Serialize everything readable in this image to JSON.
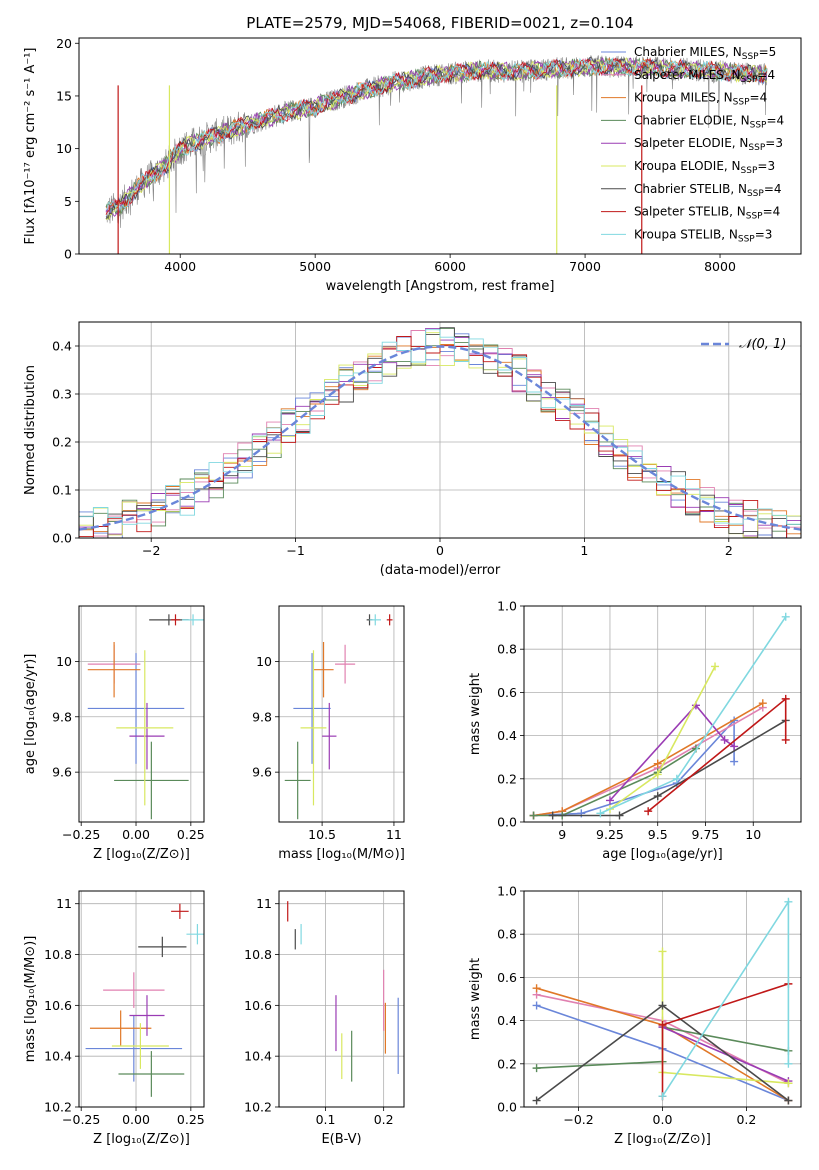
{
  "figure_title": "PLATE=2579, MJD=54068, FIBERID=0021, z=0.104",
  "colors": {
    "Chabrier MILES": "#6a86d9",
    "Salpeter MILES": "#e080b0",
    "Kroupa MILES": "#e07828",
    "Chabrier ELODIE": "#5a8a5a",
    "Salpeter ELODIE": "#9a3cb4",
    "Kroupa ELODIE": "#d8e860",
    "Chabrier STELIB": "#4a4a4a",
    "Salpeter STELIB": "#c01818",
    "Kroupa STELIB": "#80d8e0",
    "gaussian": "#6a86d9",
    "grid": "#b0b0b0"
  },
  "chart_data": [
    {
      "id": "spectrum",
      "type": "line",
      "title": "PLATE=2579, MJD=54068, FIBERID=0021, z=0.104",
      "xlabel": "wavelength [Angstrom, rest frame]",
      "ylabel": "Flux [fλ10⁻¹⁷ erg cm⁻² s⁻¹ A⁻¹]",
      "xlim": [
        3250,
        8600
      ],
      "ylim": [
        0,
        20.5
      ],
      "xticks": [
        4000,
        5000,
        6000,
        7000,
        8000
      ],
      "yticks": [
        0,
        5,
        10,
        15,
        20
      ],
      "grid": false,
      "legend_position": "top-right",
      "legend": [
        {
          "label": "Chabrier MILES, N",
          "sub": "SSP",
          "suffix": "=5"
        },
        {
          "label": "Salpeter MILES, N",
          "sub": "SSP",
          "suffix": "=4"
        },
        {
          "label": "Kroupa MILES, N",
          "sub": "SSP",
          "suffix": "=4"
        },
        {
          "label": "Chabrier ELODIE, N",
          "sub": "SSP",
          "suffix": "=4"
        },
        {
          "label": "Salpeter ELODIE, N",
          "sub": "SSP",
          "suffix": "=3"
        },
        {
          "label": "Kroupa ELODIE, N",
          "sub": "SSP",
          "suffix": "=3"
        },
        {
          "label": "Chabrier STELIB, N",
          "sub": "SSP",
          "suffix": "=4"
        },
        {
          "label": "Salpeter STELIB, N",
          "sub": "SSP",
          "suffix": "=4"
        },
        {
          "label": "Kroupa STELIB, N",
          "sub": "SSP",
          "suffix": "=3"
        }
      ],
      "data_range": [
        3450,
        8350
      ],
      "continuum": {
        "x": [
          3450,
          3550,
          3700,
          3900,
          4000,
          4200,
          4500,
          4800,
          5000,
          5300,
          5600,
          5900,
          6200,
          6500,
          6800,
          7100,
          7400,
          7800,
          8100,
          8350
        ],
        "y": [
          4.0,
          4.5,
          6.5,
          8.5,
          10.0,
          11.0,
          12.3,
          13.5,
          14.0,
          15.3,
          16.3,
          17.0,
          17.4,
          17.3,
          17.6,
          17.8,
          17.7,
          17.5,
          17.2,
          17.0
        ]
      }
    },
    {
      "id": "residuals",
      "type": "line",
      "xlabel": "(data-model)/error",
      "ylabel": "Normed distribution",
      "xlim": [
        -2.5,
        2.5
      ],
      "ylim": [
        0,
        0.45
      ],
      "xticks": [
        -2,
        -1,
        0,
        1,
        2
      ],
      "yticks": [
        0.0,
        0.1,
        0.2,
        0.3,
        0.4
      ],
      "grid": true,
      "legend_position": "top-right",
      "legend": [
        {
          "label": "𝒩(0, 1)",
          "style": "dashed"
        }
      ]
    },
    {
      "id": "age_vs_Z",
      "type": "scatter",
      "xlabel": "Z [log₁₀(Z/Z⊙)]",
      "ylabel": "age [log₁₀(age/yr)]",
      "xlim": [
        -0.26,
        0.31
      ],
      "ylim": [
        9.42,
        10.2
      ],
      "xticks": [
        -0.25,
        0.0,
        0.25
      ],
      "xticklabels": [
        "−0.25",
        "0.00",
        "0.25"
      ],
      "yticks": [
        9.6,
        9.8,
        10.0
      ],
      "grid": true,
      "points": [
        {
          "model": "Chabrier MILES",
          "x": 0.0,
          "y": 9.83,
          "xerr": 0.22,
          "yerr": 0.2
        },
        {
          "model": "Salpeter MILES",
          "x": -0.1,
          "y": 9.99,
          "xerr": 0.12,
          "yerr": 0.07
        },
        {
          "model": "Kroupa MILES",
          "x": -0.1,
          "y": 9.97,
          "xerr": 0.12,
          "yerr": 0.1
        },
        {
          "model": "Chabrier ELODIE",
          "x": 0.07,
          "y": 9.57,
          "xerr": 0.17,
          "yerr": 0.14
        },
        {
          "model": "Salpeter ELODIE",
          "x": 0.05,
          "y": 9.73,
          "xerr": 0.08,
          "yerr": 0.12
        },
        {
          "model": "Kroupa ELODIE",
          "x": 0.04,
          "y": 9.76,
          "xerr": 0.13,
          "yerr": 0.28
        },
        {
          "model": "Chabrier STELIB",
          "x": 0.15,
          "y": 10.15,
          "xerr": 0.09,
          "yerr": 0.02
        },
        {
          "model": "Salpeter STELIB",
          "x": 0.18,
          "y": 10.15,
          "xerr": 0.02,
          "yerr": 0.02
        },
        {
          "model": "Kroupa STELIB",
          "x": 0.26,
          "y": 10.15,
          "xerr": 0.05,
          "yerr": 0.02
        }
      ]
    },
    {
      "id": "age_vs_mass",
      "type": "scatter",
      "xlabel": "mass [log₁₀(M/M⊙)]",
      "xlim": [
        10.2,
        11.07
      ],
      "ylim": [
        9.42,
        10.2
      ],
      "xticks": [
        10.5,
        11.0
      ],
      "yticks": [
        9.6,
        9.8,
        10.0
      ],
      "grid": true,
      "points": [
        {
          "model": "Chabrier MILES",
          "x": 10.43,
          "y": 9.83,
          "xerr": 0.13,
          "yerr": 0.2
        },
        {
          "model": "Salpeter MILES",
          "x": 10.66,
          "y": 9.99,
          "xerr": 0.07,
          "yerr": 0.07
        },
        {
          "model": "Kroupa MILES",
          "x": 10.51,
          "y": 9.97,
          "xerr": 0.07,
          "yerr": 0.1
        },
        {
          "model": "Chabrier ELODIE",
          "x": 10.33,
          "y": 9.57,
          "xerr": 0.09,
          "yerr": 0.14
        },
        {
          "model": "Salpeter ELODIE",
          "x": 10.55,
          "y": 9.73,
          "xerr": 0.05,
          "yerr": 0.12
        },
        {
          "model": "Kroupa ELODIE",
          "x": 10.44,
          "y": 9.76,
          "xerr": 0.09,
          "yerr": 0.28
        },
        {
          "model": "Chabrier STELIB",
          "x": 10.83,
          "y": 10.15,
          "xerr": 0.02,
          "yerr": 0.02
        },
        {
          "model": "Salpeter STELIB",
          "x": 10.97,
          "y": 10.15,
          "xerr": 0.02,
          "yerr": 0.02
        },
        {
          "model": "Kroupa STELIB",
          "x": 10.87,
          "y": 10.15,
          "xerr": 0.04,
          "yerr": 0.02
        }
      ]
    },
    {
      "id": "weight_vs_age",
      "type": "line",
      "xlabel": "age [log₁₀(age/yr)]",
      "ylabel": "mass weight",
      "xlim": [
        8.8,
        10.25
      ],
      "ylim": [
        0,
        1.0
      ],
      "xticks": [
        9.0,
        9.25,
        9.5,
        9.75,
        10.0
      ],
      "yticks": [
        0.0,
        0.2,
        0.4,
        0.6,
        0.8,
        1.0
      ],
      "grid": true,
      "series": [
        {
          "model": "Chabrier MILES",
          "x": [
            8.85,
            9.1,
            9.6,
            9.9,
            9.9
          ],
          "y": [
            0.03,
            0.04,
            0.18,
            0.47,
            0.28
          ]
        },
        {
          "model": "Salpeter MILES",
          "x": [
            8.85,
            9.0,
            9.5,
            10.05
          ],
          "y": [
            0.03,
            0.05,
            0.25,
            0.53
          ]
        },
        {
          "model": "Kroupa MILES",
          "x": [
            8.85,
            9.0,
            9.5,
            10.05
          ],
          "y": [
            0.03,
            0.05,
            0.27,
            0.55
          ]
        },
        {
          "model": "Chabrier ELODIE",
          "x": [
            8.85,
            9.0,
            9.5,
            9.7
          ],
          "y": [
            0.03,
            0.03,
            0.23,
            0.34
          ]
        },
        {
          "model": "Salpeter ELODIE",
          "x": [
            9.25,
            9.7,
            9.85,
            9.9
          ],
          "y": [
            0.1,
            0.54,
            0.38,
            0.35
          ]
        },
        {
          "model": "Kroupa ELODIE",
          "x": [
            9.25,
            9.5,
            9.8
          ],
          "y": [
            0.06,
            0.22,
            0.72
          ]
        },
        {
          "model": "Chabrier STELIB",
          "x": [
            8.95,
            9.3,
            9.5,
            10.17
          ],
          "y": [
            0.03,
            0.03,
            0.12,
            0.47
          ]
        },
        {
          "model": "Salpeter STELIB",
          "x": [
            9.45,
            10.17,
            10.17
          ],
          "y": [
            0.05,
            0.57,
            0.38
          ]
        },
        {
          "model": "Kroupa STELIB",
          "x": [
            9.2,
            9.6,
            10.17
          ],
          "y": [
            0.04,
            0.2,
            0.95
          ]
        }
      ]
    },
    {
      "id": "mass_vs_Z",
      "type": "scatter",
      "xlabel": "Z [log₁₀(Z/Z⊙)]",
      "ylabel": "mass [log₁₀(M/M⊙)]",
      "xlim": [
        -0.26,
        0.31
      ],
      "ylim": [
        10.2,
        11.05
      ],
      "xticks": [
        -0.25,
        0.0,
        0.25
      ],
      "xticklabels": [
        "−0.25",
        "0.00",
        "0.25"
      ],
      "yticks": [
        10.2,
        10.4,
        10.6,
        10.8,
        11.0
      ],
      "grid": true,
      "points": [
        {
          "model": "Chabrier MILES",
          "x": -0.01,
          "y": 10.43,
          "xerr": 0.22,
          "yerr": 0.13
        },
        {
          "model": "Salpeter MILES",
          "x": -0.01,
          "y": 10.66,
          "xerr": 0.14,
          "yerr": 0.07
        },
        {
          "model": "Kroupa MILES",
          "x": -0.07,
          "y": 10.51,
          "xerr": 0.14,
          "yerr": 0.07
        },
        {
          "model": "Chabrier ELODIE",
          "x": 0.07,
          "y": 10.33,
          "xerr": 0.15,
          "yerr": 0.09
        },
        {
          "model": "Salpeter ELODIE",
          "x": 0.05,
          "y": 10.56,
          "xerr": 0.08,
          "yerr": 0.08
        },
        {
          "model": "Kroupa ELODIE",
          "x": 0.02,
          "y": 10.44,
          "xerr": 0.13,
          "yerr": 0.09
        },
        {
          "model": "Chabrier STELIB",
          "x": 0.12,
          "y": 10.83,
          "xerr": 0.11,
          "yerr": 0.04
        },
        {
          "model": "Salpeter STELIB",
          "x": 0.2,
          "y": 10.97,
          "xerr": 0.04,
          "yerr": 0.03
        },
        {
          "model": "Kroupa STELIB",
          "x": 0.28,
          "y": 10.88,
          "xerr": 0.05,
          "yerr": 0.04
        }
      ]
    },
    {
      "id": "mass_vs_ebv",
      "type": "scatter",
      "xlabel": "E(B-V)",
      "xlim": [
        0.02,
        0.235
      ],
      "ylim": [
        10.2,
        11.05
      ],
      "xticks": [
        0.1,
        0.2
      ],
      "yticks": [
        10.2,
        10.4,
        10.6,
        10.8,
        11.0
      ],
      "grid": true,
      "points": [
        {
          "model": "Chabrier MILES",
          "x": 0.225,
          "y": 10.48,
          "xerr": 0,
          "yerr": 0.15
        },
        {
          "model": "Salpeter MILES",
          "x": 0.2,
          "y": 10.62,
          "xerr": 0,
          "yerr": 0.12
        },
        {
          "model": "Kroupa MILES",
          "x": 0.203,
          "y": 10.51,
          "xerr": 0,
          "yerr": 0.1
        },
        {
          "model": "Chabrier ELODIE",
          "x": 0.145,
          "y": 10.4,
          "xerr": 0,
          "yerr": 0.1
        },
        {
          "model": "Salpeter ELODIE",
          "x": 0.118,
          "y": 10.53,
          "xerr": 0,
          "yerr": 0.11
        },
        {
          "model": "Kroupa ELODIE",
          "x": 0.128,
          "y": 10.4,
          "xerr": 0,
          "yerr": 0.09
        },
        {
          "model": "Chabrier STELIB",
          "x": 0.048,
          "y": 10.86,
          "xerr": 0,
          "yerr": 0.04
        },
        {
          "model": "Salpeter STELIB",
          "x": 0.035,
          "y": 10.97,
          "xerr": 0,
          "yerr": 0.04
        },
        {
          "model": "Kroupa STELIB",
          "x": 0.058,
          "y": 10.88,
          "xerr": 0,
          "yerr": 0.04
        }
      ]
    },
    {
      "id": "weight_vs_Z",
      "type": "line",
      "xlabel": "Z [log₁₀(Z/Z⊙)]",
      "ylabel": "mass weight",
      "xlim": [
        -0.33,
        0.33
      ],
      "ylim": [
        0,
        1.0
      ],
      "xticks": [
        -0.2,
        0.0,
        0.2
      ],
      "xticklabels": [
        "−0.2",
        "0.0",
        "0.2"
      ],
      "yticks": [
        0.0,
        0.2,
        0.4,
        0.6,
        0.8,
        1.0
      ],
      "grid": true,
      "series": [
        {
          "model": "Chabrier MILES",
          "x": [
            -0.3,
            0.0,
            0.3
          ],
          "y": [
            0.47,
            0.27,
            0.03
          ]
        },
        {
          "model": "Salpeter MILES",
          "x": [
            -0.3,
            0.0,
            0.3
          ],
          "y": [
            0.52,
            0.4,
            0.11
          ]
        },
        {
          "model": "Kroupa MILES",
          "x": [
            -0.3,
            0.0,
            0.3
          ],
          "y": [
            0.55,
            0.38,
            0.03
          ]
        },
        {
          "model": "Chabrier ELODIE",
          "x": [
            -0.3,
            0.0,
            0.0,
            0.3
          ],
          "y": [
            0.18,
            0.21,
            0.37,
            0.26
          ]
        },
        {
          "model": "Salpeter ELODIE",
          "x": [
            0.0,
            0.3
          ],
          "y": [
            0.37,
            0.12
          ]
        },
        {
          "model": "Kroupa ELODIE",
          "x": [
            0.0,
            0.0,
            0.3
          ],
          "y": [
            0.72,
            0.16,
            0.11
          ]
        },
        {
          "model": "Chabrier STELIB",
          "x": [
            -0.3,
            0.0,
            0.3
          ],
          "y": [
            0.03,
            0.47,
            0.03
          ]
        },
        {
          "model": "Salpeter STELIB",
          "x": [
            0.0,
            0.0,
            0.3
          ],
          "y": [
            0.05,
            0.38,
            0.57
          ]
        },
        {
          "model": "Kroupa STELIB",
          "x": [
            0.0,
            0.3,
            0.3
          ],
          "y": [
            0.05,
            0.95,
            0.2
          ]
        }
      ]
    }
  ]
}
